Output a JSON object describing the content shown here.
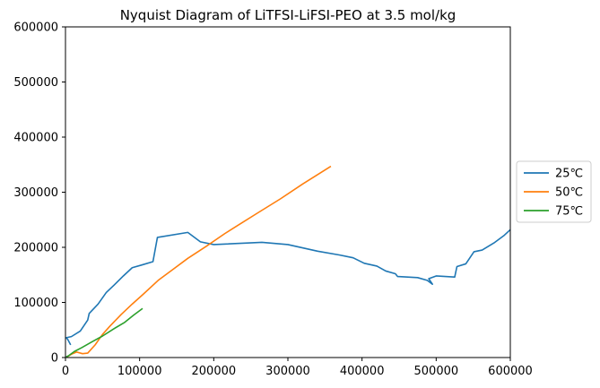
{
  "chart_data": {
    "type": "line",
    "title": "Nyquist Diagram of LiTFSI-LiFSI-PEO at 3.5 mol/kg",
    "xlabel": "",
    "ylabel": "",
    "xlim": [
      0,
      600000
    ],
    "ylim": [
      0,
      600000
    ],
    "xticks": [
      0,
      100000,
      200000,
      300000,
      400000,
      500000,
      600000
    ],
    "yticks": [
      0,
      100000,
      200000,
      300000,
      400000,
      500000,
      600000
    ],
    "xtick_labels": [
      "0",
      "100000",
      "200000",
      "300000",
      "400000",
      "500000",
      "600000"
    ],
    "ytick_labels": [
      "0",
      "100000",
      "200000",
      "300000",
      "400000",
      "500000",
      "600000"
    ],
    "grid": false,
    "legend_position": "right-outside",
    "series": [
      {
        "name": "25℃",
        "color": "#1f77b4",
        "points": [
          [
            7000,
            23000
          ],
          [
            3000,
            33000
          ],
          [
            1000,
            36000
          ],
          [
            8000,
            38000
          ],
          [
            20000,
            48000
          ],
          [
            30000,
            68000
          ],
          [
            32000,
            80000
          ],
          [
            44000,
            97000
          ],
          [
            55000,
            118000
          ],
          [
            66000,
            132000
          ],
          [
            78000,
            148000
          ],
          [
            90000,
            163000
          ],
          [
            103000,
            168000
          ],
          [
            118000,
            174000
          ],
          [
            124000,
            218000
          ],
          [
            165000,
            227000
          ],
          [
            182000,
            210000
          ],
          [
            200000,
            205000
          ],
          [
            265000,
            209000
          ],
          [
            300000,
            205000
          ],
          [
            340000,
            193000
          ],
          [
            370000,
            186000
          ],
          [
            388000,
            181000
          ],
          [
            403000,
            171000
          ],
          [
            420000,
            166000
          ],
          [
            432000,
            157000
          ],
          [
            445000,
            152000
          ],
          [
            448000,
            147000
          ],
          [
            475000,
            145000
          ],
          [
            488000,
            140000
          ],
          [
            495000,
            133000
          ],
          [
            490000,
            143000
          ],
          [
            500000,
            148000
          ],
          [
            525000,
            146000
          ],
          [
            528000,
            165000
          ],
          [
            540000,
            170000
          ],
          [
            551000,
            192000
          ],
          [
            562000,
            195000
          ],
          [
            578000,
            208000
          ],
          [
            592000,
            222000
          ],
          [
            600000,
            232000
          ]
        ]
      },
      {
        "name": "50℃",
        "color": "#ff7f0e",
        "points": [
          [
            2000,
            1000
          ],
          [
            8000,
            6000
          ],
          [
            15000,
            10000
          ],
          [
            23000,
            7000
          ],
          [
            30000,
            8000
          ],
          [
            40000,
            23000
          ],
          [
            50000,
            42000
          ],
          [
            60000,
            57000
          ],
          [
            75000,
            78000
          ],
          [
            90000,
            97000
          ],
          [
            105000,
            115000
          ],
          [
            125000,
            140000
          ],
          [
            145000,
            160000
          ],
          [
            165000,
            180000
          ],
          [
            190000,
            202000
          ],
          [
            215000,
            225000
          ],
          [
            235000,
            242000
          ],
          [
            260000,
            263000
          ],
          [
            290000,
            288000
          ],
          [
            320000,
            315000
          ],
          [
            358000,
            347000
          ]
        ]
      },
      {
        "name": "75℃",
        "color": "#2ca02c",
        "points": [
          [
            1000,
            1000
          ],
          [
            5000,
            4000
          ],
          [
            12000,
            11000
          ],
          [
            22000,
            18000
          ],
          [
            35000,
            28000
          ],
          [
            50000,
            39000
          ],
          [
            65000,
            52000
          ],
          [
            80000,
            64000
          ],
          [
            92000,
            77000
          ],
          [
            104000,
            89000
          ]
        ]
      }
    ]
  }
}
